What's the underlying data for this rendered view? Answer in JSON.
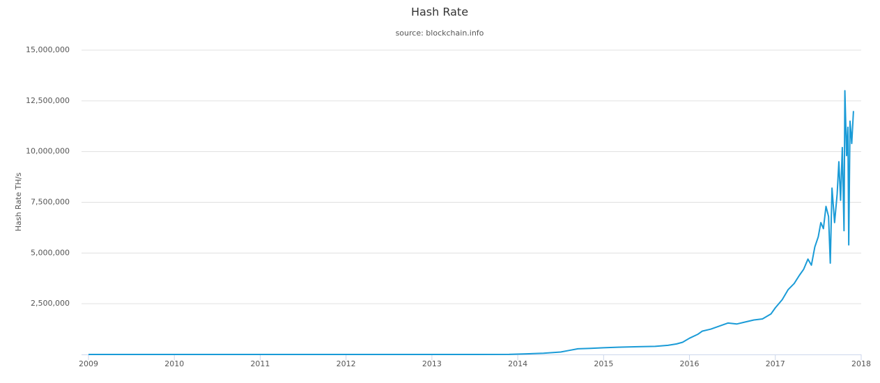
{
  "chart_data": {
    "type": "line",
    "title": "Hash Rate",
    "subtitle": "source: blockchain.info",
    "y_label": "Hash Rate TH/s",
    "x": [
      2009,
      2010,
      2011,
      2012,
      2013,
      2013.5,
      2013.9,
      2014.1,
      2014.3,
      2014.5,
      2014.6,
      2014.7,
      2014.85,
      2015,
      2015.2,
      2015.4,
      2015.6,
      2015.75,
      2015.85,
      2015.92,
      2016,
      2016.1,
      2016.15,
      2016.25,
      2016.35,
      2016.45,
      2016.55,
      2016.65,
      2016.75,
      2016.85,
      2016.95,
      2017,
      2017.08,
      2017.15,
      2017.22,
      2017.28,
      2017.33,
      2017.38,
      2017.42,
      2017.46,
      2017.5,
      2017.53,
      2017.56,
      2017.59,
      2017.62,
      2017.64,
      2017.66,
      2017.69,
      2017.72,
      2017.74,
      2017.76,
      2017.78,
      2017.8,
      2017.81,
      2017.83,
      2017.845,
      2017.855,
      2017.87,
      2017.89,
      2017.91
    ],
    "series": [
      {
        "name": "Hash Rate",
        "color": "#1a9bd7",
        "values": [
          0,
          0,
          10,
          15,
          20,
          200,
          5000,
          30000,
          60000,
          120000,
          200000,
          280000,
          300000,
          330000,
          360000,
          380000,
          400000,
          450000,
          520000,
          600000,
          800000,
          1000000,
          1150000,
          1250000,
          1400000,
          1550000,
          1500000,
          1600000,
          1700000,
          1750000,
          2000000,
          2300000,
          2700000,
          3200000,
          3500000,
          3900000,
          4200000,
          4700000,
          4400000,
          5300000,
          5800000,
          6500000,
          6200000,
          7300000,
          6800000,
          4500000,
          8200000,
          6500000,
          7900000,
          9500000,
          7600000,
          10200000,
          6100000,
          13000000,
          9800000,
          11200000,
          5400000,
          11500000,
          10400000,
          12000000
        ]
      }
    ],
    "xlim": [
      2009,
      2018
    ],
    "xticks": [
      2009,
      2010,
      2011,
      2012,
      2013,
      2014,
      2015,
      2016,
      2017,
      2018
    ],
    "ylim": [
      0,
      15000000
    ],
    "yticks": [
      {
        "value": 2500000,
        "label": "2,500,000"
      },
      {
        "value": 5000000,
        "label": "5,000,000"
      },
      {
        "value": 7500000,
        "label": "7,500,000"
      },
      {
        "value": 10000000,
        "label": "10,000,000"
      },
      {
        "value": 12500000,
        "label": "12,500,000"
      },
      {
        "value": 15000000,
        "label": "15,000,000"
      }
    ],
    "grid": true
  }
}
